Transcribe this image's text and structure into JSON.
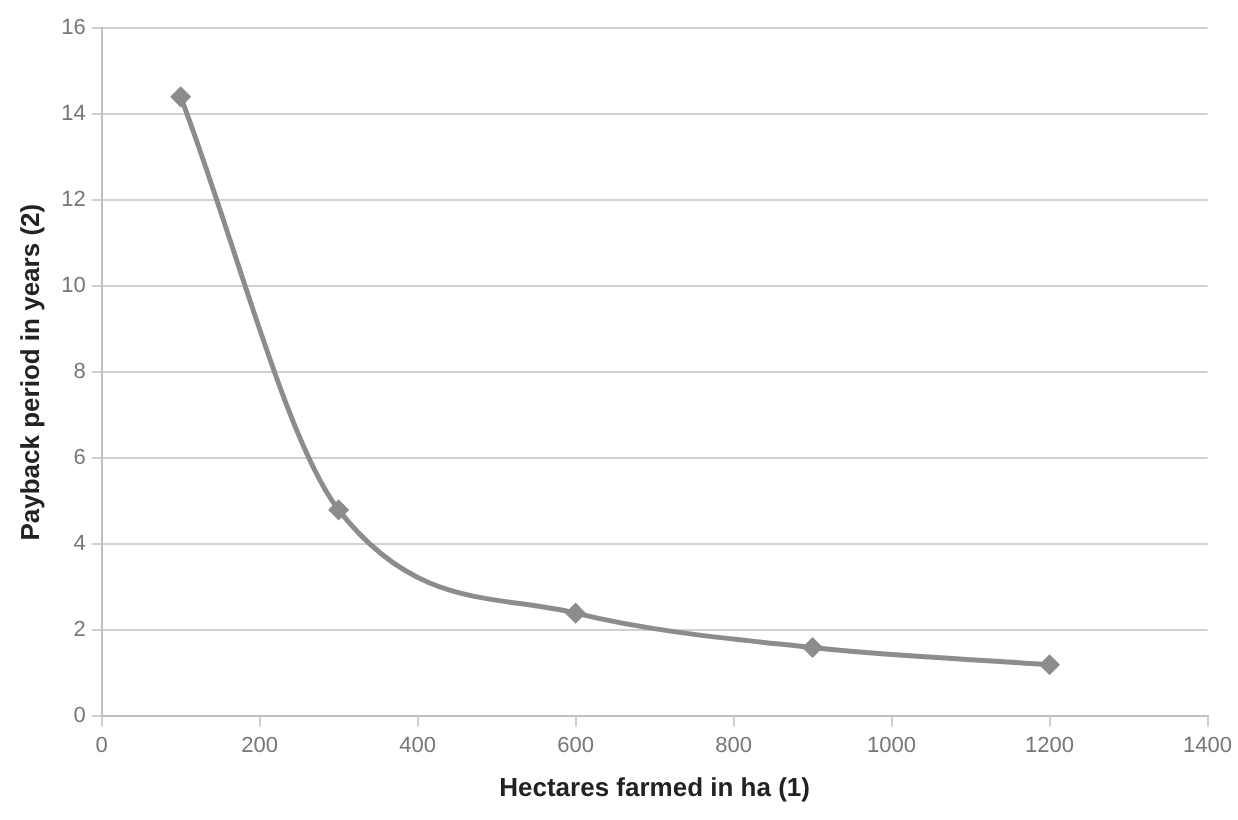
{
  "chart_data": {
    "type": "line",
    "xlabel": "Hectares farmed in ha (1)",
    "ylabel": "Payback period in years (2)",
    "x": [
      100,
      300,
      600,
      900,
      1200
    ],
    "series": [
      {
        "color": "#8c8c8c",
        "values": [
          14.4,
          4.8,
          2.4,
          1.6,
          1.2
        ]
      }
    ],
    "xlim": [
      0,
      1400
    ],
    "xticks": [
      0,
      200,
      400,
      600,
      800,
      1000,
      1200,
      1400
    ],
    "ylim": [
      0,
      16
    ],
    "yticks": [
      0,
      2,
      4,
      6,
      8,
      10,
      12,
      14,
      16
    ],
    "grid": "y",
    "marker": "diamond",
    "line_style": "solid",
    "legend": false
  }
}
